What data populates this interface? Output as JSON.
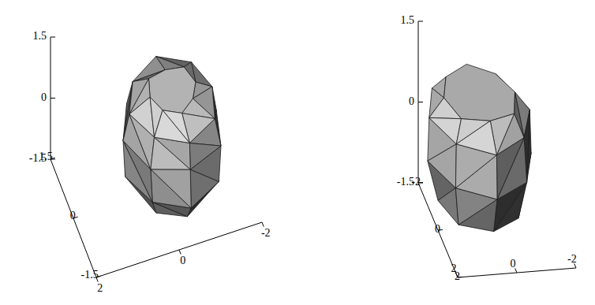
{
  "chart_data": [
    {
      "type": "polyhedron",
      "xlim": [
        2,
        -2
      ],
      "ylim": [
        -1.5,
        1.5
      ],
      "zlim": [
        -1.5,
        1.5
      ],
      "xticks": [
        2,
        0,
        -2
      ],
      "yticks": [
        -1.5,
        0,
        1.5
      ],
      "zticks": [
        -1.5,
        0,
        1.5
      ],
      "rings": [
        {
          "z": -1.35,
          "cx": -0.4,
          "cy": 0,
          "r": [
            0.85,
            0.95,
            0.9,
            0.85,
            0.8,
            0.85,
            0.95,
            0.9
          ]
        },
        {
          "z": -0.9,
          "cx": -0.4,
          "cy": 0,
          "r": [
            1.15,
            1.2,
            1.1,
            1.05,
            1.1,
            1.15,
            1.2,
            1.1
          ]
        },
        {
          "z": 0,
          "cx": -0.4,
          "cy": 0,
          "r": [
            1.2,
            1.15,
            1.25,
            1.1,
            1.05,
            1.2,
            1.15,
            1.2
          ]
        },
        {
          "z": 0.6,
          "cx": -0.4,
          "cy": 0,
          "r": [
            1.05,
            1.0,
            1.1,
            1.0,
            0.95,
            1.05,
            1.1,
            1.0
          ]
        },
        {
          "z": 0.85,
          "cx": -0.4,
          "cy": 0,
          "r": [
            0.55,
            0.6,
            0.5,
            0.6,
            0.55,
            0.5,
            0.6,
            0.55
          ]
        }
      ]
    },
    {
      "type": "polyhedron",
      "xlim": [
        2,
        -2
      ],
      "ylim": [
        2,
        -2
      ],
      "zlim": [
        -1.5,
        1.5
      ],
      "xticks": [
        2,
        0,
        -2
      ],
      "yticks": [
        -2,
        0,
        2
      ],
      "zticks": [
        -1.5,
        0,
        1.5
      ],
      "rings": [
        {
          "z": -0.95,
          "cx": 0.6,
          "cy": 0,
          "r": [
            1.4,
            1.5,
            1.45,
            1.4,
            1.5,
            1.45,
            1.4,
            1.5
          ]
        },
        {
          "z": -0.2,
          "cx": 0.6,
          "cy": 0,
          "r": [
            1.75,
            1.7,
            1.8,
            1.7,
            1.75,
            1.8,
            1.7,
            1.75
          ]
        },
        {
          "z": 0.6,
          "cx": 0.6,
          "cy": 0,
          "r": [
            1.7,
            1.65,
            1.75,
            1.6,
            1.7,
            1.75,
            1.65,
            1.7
          ]
        },
        {
          "z": 0.95,
          "cx": 0.6,
          "cy": 0,
          "r": [
            1.2,
            1.3,
            1.1,
            1.25,
            1.2,
            1.15,
            1.3,
            1.2
          ]
        }
      ]
    }
  ]
}
